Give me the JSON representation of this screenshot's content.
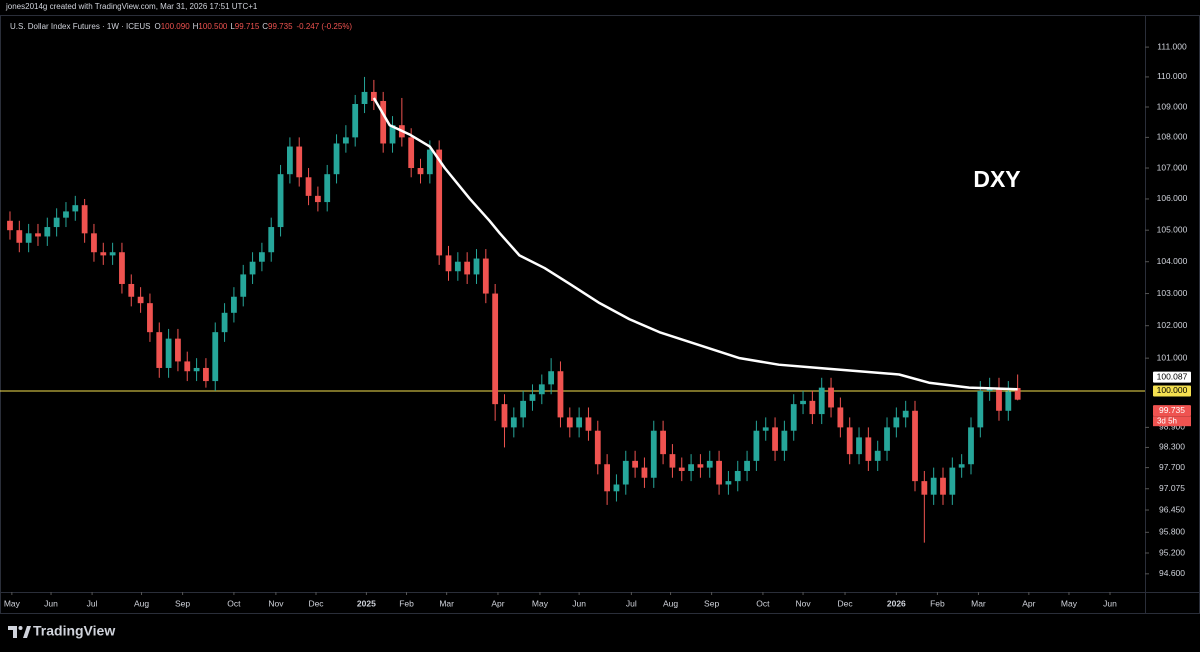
{
  "chart_data": {
    "type": "candlestick",
    "caption": "jones2014g created with TradingView.com, Mar 31, 2026 17:51 UTC+1",
    "symbol": "U.S. Dollar Index Futures · 1W · ICEUS",
    "ohlc_legend": [
      {
        "label": "O",
        "value": "100.090"
      },
      {
        "label": "H",
        "value": "100.500"
      },
      {
        "label": "L",
        "value": "99.715"
      },
      {
        "label": "C",
        "value": "99.735"
      }
    ],
    "change": "-0.247 (-0.25%)",
    "annotation": "DXY",
    "brand": "TradingView",
    "log_scale": true,
    "up_color": "#26a69a",
    "down_color": "#ef5350",
    "ylim": [
      94.08,
      111.51
    ],
    "yticks": [
      {
        "value": 111,
        "label": "111.000"
      },
      {
        "value": 110,
        "label": "110.000"
      },
      {
        "value": 109,
        "label": "109.000"
      },
      {
        "value": 108,
        "label": "108.000"
      },
      {
        "value": 107,
        "label": "107.000"
      },
      {
        "value": 106,
        "label": "106.000"
      },
      {
        "value": 105,
        "label": "105.000"
      },
      {
        "value": 104,
        "label": "104.000"
      },
      {
        "value": 103,
        "label": "103.000"
      },
      {
        "value": 102,
        "label": "102.000"
      },
      {
        "value": 101,
        "label": "101.000"
      },
      {
        "value": 98.9,
        "label": "98.900"
      },
      {
        "value": 98.3,
        "label": "98.300"
      },
      {
        "value": 97.7,
        "label": "97.700"
      },
      {
        "value": 97.075,
        "label": "97.075"
      },
      {
        "value": 96.45,
        "label": "96.450"
      },
      {
        "value": 95.8,
        "label": "95.800"
      },
      {
        "value": 95.2,
        "label": "95.200"
      },
      {
        "value": 94.6,
        "label": "94.600"
      }
    ],
    "xlim": [
      -1.07,
      121.65
    ],
    "xticks": [
      {
        "value": 0.2,
        "label": "May"
      },
      {
        "value": 4.4,
        "label": "Jun"
      },
      {
        "value": 8.8,
        "label": "Jul"
      },
      {
        "value": 14.1,
        "label": "Aug"
      },
      {
        "value": 18.5,
        "label": "Sep"
      },
      {
        "value": 24,
        "label": "Oct"
      },
      {
        "value": 28.5,
        "label": "Nov"
      },
      {
        "value": 32.8,
        "label": "Dec"
      },
      {
        "value": 38.2,
        "label": "2025"
      },
      {
        "value": 42.5,
        "label": "Feb"
      },
      {
        "value": 46.8,
        "label": "Mar"
      },
      {
        "value": 52.3,
        "label": "Apr"
      },
      {
        "value": 56.8,
        "label": "May"
      },
      {
        "value": 61,
        "label": "Jun"
      },
      {
        "value": 66.6,
        "label": "Jul"
      },
      {
        "value": 70.8,
        "label": "Aug"
      },
      {
        "value": 75.2,
        "label": "Sep"
      },
      {
        "value": 80.7,
        "label": "Oct"
      },
      {
        "value": 85,
        "label": "Nov"
      },
      {
        "value": 89.5,
        "label": "Dec"
      },
      {
        "value": 95,
        "label": "2026"
      },
      {
        "value": 99.4,
        "label": "Feb"
      },
      {
        "value": 103.8,
        "label": "Mar"
      },
      {
        "value": 109.2,
        "label": "Apr"
      },
      {
        "value": 113.5,
        "label": "May"
      },
      {
        "value": 117.9,
        "label": "Jun"
      }
    ],
    "open": [
      105.3,
      105.0,
      104.6,
      104.9,
      104.8,
      105.1,
      105.4,
      105.6,
      105.8,
      104.9,
      104.3,
      104.2,
      104.3,
      103.3,
      102.9,
      102.7,
      101.8,
      100.7,
      101.6,
      100.9,
      100.6,
      100.7,
      100.3,
      101.8,
      102.4,
      102.9,
      103.6,
      104.0,
      104.3,
      105.1,
      106.8,
      107.7,
      106.7,
      106.1,
      105.9,
      106.8,
      107.8,
      108.0,
      109.1,
      109.5,
      109.2,
      107.8,
      108.4,
      108.0,
      107.0,
      106.8,
      107.6,
      104.2,
      103.7,
      104.0,
      103.6,
      104.1,
      103.0,
      99.6,
      98.9,
      99.2,
      99.7,
      99.9,
      100.2,
      100.6,
      99.2,
      98.9,
      99.2,
      98.8,
      97.8,
      97.0,
      97.2,
      97.9,
      97.7,
      97.4,
      98.8,
      98.1,
      97.7,
      97.6,
      97.8,
      97.7,
      97.9,
      97.2,
      97.3,
      97.6,
      97.9,
      98.8,
      98.9,
      98.2,
      98.8,
      99.6,
      99.7,
      99.3,
      100.1,
      99.5,
      98.9,
      98.1,
      98.6,
      97.9,
      98.2,
      98.9,
      99.2,
      99.4,
      97.3,
      96.9,
      97.4,
      96.9,
      97.7,
      97.8,
      98.9,
      100.0,
      100.1,
      99.4,
      100.09
    ],
    "high": [
      105.6,
      105.3,
      105.2,
      105.2,
      105.4,
      105.7,
      105.9,
      106.1,
      106.0,
      105.2,
      104.6,
      104.6,
      104.6,
      103.6,
      103.2,
      103.0,
      102.1,
      101.9,
      101.9,
      101.2,
      101.0,
      101.0,
      102.1,
      102.7,
      103.2,
      103.9,
      104.3,
      104.6,
      105.4,
      107.1,
      108.0,
      108.0,
      107.0,
      106.4,
      107.1,
      108.1,
      108.4,
      109.4,
      110.0,
      109.9,
      109.5,
      108.7,
      109.3,
      108.3,
      107.3,
      107.9,
      107.9,
      104.5,
      104.3,
      104.3,
      104.4,
      104.4,
      103.3,
      99.9,
      99.5,
      100.0,
      100.2,
      100.5,
      101.0,
      100.9,
      99.5,
      99.5,
      99.5,
      99.1,
      98.1,
      97.5,
      98.2,
      98.2,
      98.0,
      99.1,
      99.1,
      98.4,
      98.0,
      98.1,
      98.1,
      98.2,
      98.2,
      97.6,
      97.9,
      98.2,
      99.1,
      99.2,
      99.2,
      99.1,
      99.9,
      100.0,
      100.0,
      100.4,
      100.4,
      99.8,
      99.2,
      98.9,
      98.9,
      98.5,
      99.2,
      99.5,
      99.7,
      99.7,
      97.6,
      97.7,
      97.7,
      98.0,
      98.1,
      99.2,
      100.3,
      100.4,
      100.4,
      100.3,
      100.5
    ],
    "low": [
      104.7,
      104.3,
      104.3,
      104.5,
      104.5,
      104.8,
      105.1,
      105.3,
      104.6,
      104.0,
      103.9,
      103.9,
      103.0,
      102.6,
      102.4,
      101.5,
      100.4,
      100.4,
      100.6,
      100.3,
      100.3,
      100.1,
      100.0,
      101.5,
      102.1,
      102.6,
      103.3,
      103.7,
      104.0,
      104.8,
      106.5,
      106.4,
      105.8,
      105.6,
      105.6,
      106.5,
      107.5,
      107.7,
      108.8,
      108.9,
      107.5,
      107.5,
      107.7,
      106.7,
      106.5,
      106.5,
      103.9,
      103.4,
      103.4,
      103.3,
      103.3,
      102.7,
      99.1,
      98.3,
      98.6,
      98.9,
      99.4,
      99.6,
      99.9,
      98.9,
      98.6,
      98.6,
      98.5,
      97.5,
      96.6,
      96.7,
      96.9,
      97.4,
      97.1,
      97.1,
      97.8,
      97.4,
      97.3,
      97.3,
      97.4,
      97.4,
      96.9,
      96.9,
      97.0,
      97.3,
      97.6,
      98.5,
      97.9,
      97.9,
      98.5,
      99.3,
      99.0,
      99.0,
      99.2,
      98.6,
      97.8,
      97.8,
      97.6,
      97.6,
      97.9,
      98.6,
      98.9,
      97.0,
      95.5,
      96.6,
      96.6,
      96.6,
      97.4,
      97.5,
      98.6,
      99.7,
      99.1,
      99.1,
      99.715
    ],
    "close": [
      105.0,
      104.6,
      104.9,
      104.8,
      105.1,
      105.4,
      105.6,
      105.8,
      104.9,
      104.3,
      104.2,
      104.3,
      103.3,
      102.9,
      102.7,
      101.8,
      100.7,
      101.6,
      100.9,
      100.6,
      100.7,
      100.3,
      101.8,
      102.4,
      102.9,
      103.6,
      104.0,
      104.3,
      105.1,
      106.8,
      107.7,
      106.7,
      106.1,
      105.9,
      106.8,
      107.8,
      108.0,
      109.1,
      109.5,
      109.2,
      107.8,
      108.4,
      108.0,
      107.0,
      106.8,
      107.6,
      104.2,
      103.7,
      104.0,
      103.6,
      104.1,
      103.0,
      99.6,
      98.9,
      99.2,
      99.7,
      99.9,
      100.2,
      100.6,
      99.2,
      98.9,
      99.2,
      98.8,
      97.8,
      97.0,
      97.2,
      97.9,
      97.7,
      97.4,
      98.8,
      98.1,
      97.7,
      97.6,
      97.8,
      97.7,
      97.9,
      97.2,
      97.3,
      97.6,
      97.9,
      98.8,
      98.9,
      98.2,
      98.8,
      99.6,
      99.7,
      99.3,
      100.1,
      99.5,
      98.9,
      98.1,
      98.6,
      97.9,
      98.2,
      98.9,
      99.2,
      99.4,
      97.3,
      96.9,
      97.4,
      96.9,
      97.7,
      97.8,
      98.9,
      100.0,
      100.1,
      99.4,
      99.982,
      99.735
    ],
    "ma": {
      "color": "#ffffff",
      "x": [
        39,
        40.7,
        42.8,
        45,
        46.6,
        49.3,
        51.4,
        52.5,
        54.6,
        57.3,
        60,
        63.2,
        66.4,
        69.6,
        73.9,
        78.2,
        82.4,
        86.7,
        91,
        95.3,
        98.5,
        102.8,
        108
      ],
      "values": [
        109.3,
        108.4,
        108.1,
        107.7,
        107.0,
        106.0,
        105.3,
        104.9,
        104.2,
        103.8,
        103.3,
        102.7,
        102.2,
        101.8,
        101.4,
        101.0,
        100.8,
        100.7,
        100.6,
        100.5,
        100.25,
        100.1,
        100.05
      ]
    },
    "hline": {
      "value": 100,
      "color": "#f5e050"
    },
    "price_labels": [
      {
        "value": 100.087,
        "label": "100.087",
        "bg": "#ffffff",
        "fg": "#000000"
      },
      {
        "value": 100,
        "label": "100.000",
        "bg": "#f5e050",
        "fg": "#000000"
      },
      {
        "value": 99.735,
        "label": "99.735",
        "bg": "#ef5350",
        "fg": "#ffffff",
        "note": "3d 5h"
      }
    ]
  }
}
